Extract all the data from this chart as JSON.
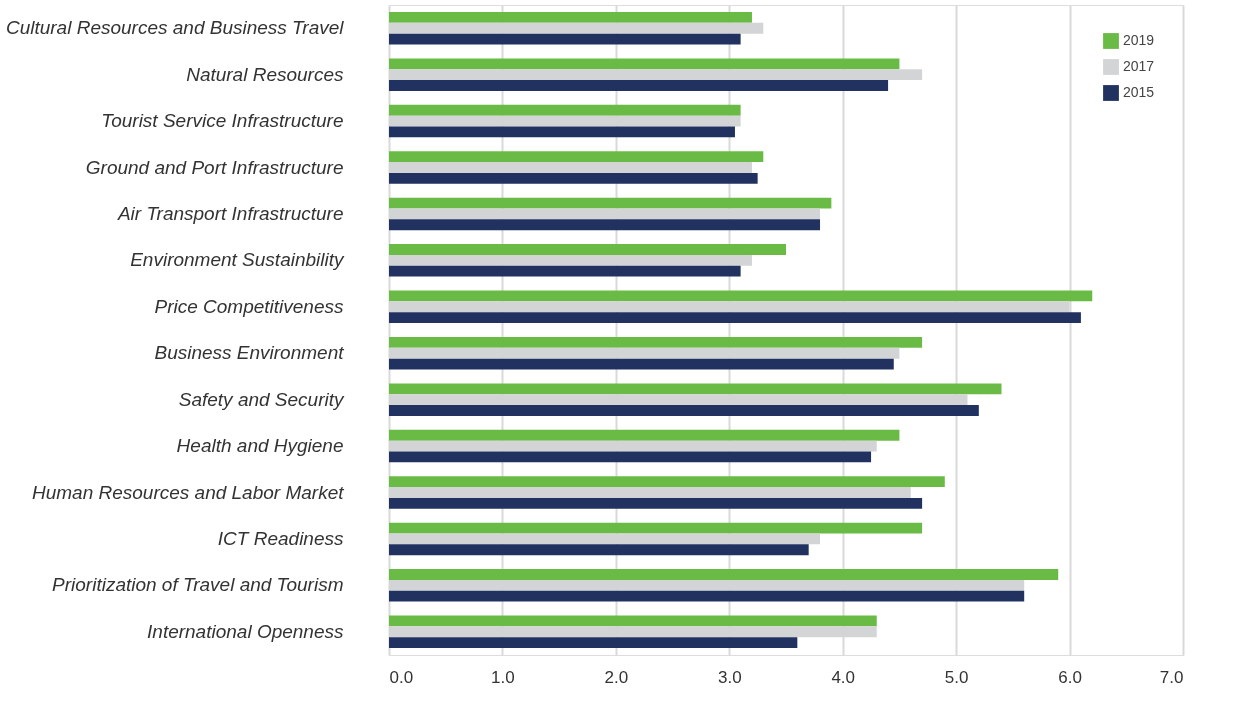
{
  "chart_data": {
    "type": "bar",
    "orientation": "horizontal",
    "categories": [
      "Cultural Resources and Business Travel",
      "Natural Resources",
      "Tourist Service Infrastructure",
      "Ground and Port Infrastructure",
      "Air Transport Infrastructure",
      "Environment Sustainbility",
      "Price Competitiveness",
      "Business Environment",
      "Safety and Security",
      "Health and Hygiene",
      "Human Resources and Labor Market",
      "ICT Readiness",
      "Prioritization of Travel and Tourism",
      "International Openness"
    ],
    "series": [
      {
        "name": "2019",
        "color": "#6abb45",
        "values": [
          3.2,
          4.5,
          3.1,
          3.3,
          3.9,
          3.5,
          6.2,
          4.7,
          5.4,
          4.5,
          4.9,
          4.7,
          5.9,
          4.3
        ]
      },
      {
        "name": "2017",
        "color": "#d3d4d6",
        "values": [
          3.3,
          4.7,
          3.1,
          3.2,
          3.8,
          3.2,
          6.0,
          4.5,
          5.1,
          4.3,
          4.6,
          3.8,
          5.6,
          4.3
        ]
      },
      {
        "name": "2015",
        "color": "#213261",
        "values": [
          3.1,
          4.4,
          3.05,
          3.25,
          3.8,
          3.1,
          6.1,
          4.45,
          5.2,
          4.25,
          4.7,
          3.7,
          5.6,
          3.6
        ]
      }
    ],
    "xlim": [
      0,
      7
    ],
    "xticks": [
      {
        "value": 0,
        "label": "0.0"
      },
      {
        "value": 1,
        "label": "1.0"
      },
      {
        "value": 2,
        "label": "2.0"
      },
      {
        "value": 3,
        "label": "3.0"
      },
      {
        "value": 4,
        "label": "4.0"
      },
      {
        "value": 5,
        "label": "5.0"
      },
      {
        "value": 6,
        "label": "6.0"
      },
      {
        "value": 7,
        "label": "7.0"
      }
    ],
    "grid": "x",
    "legend": "top right"
  }
}
